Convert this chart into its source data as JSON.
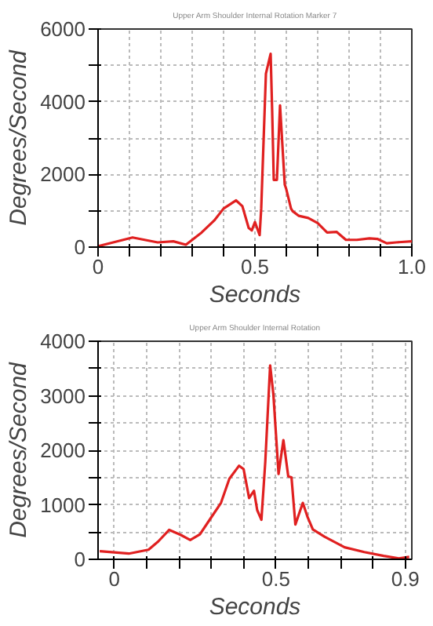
{
  "chart_data": [
    {
      "type": "line",
      "title": "Upper Arm Shoulder Internal Rotation Marker 7",
      "xlabel": "Seconds",
      "ylabel": "Degrees/Second",
      "xlim": [
        0,
        1.0
      ],
      "ylim": [
        0,
        6000
      ],
      "xticks": [
        0,
        {
          "value": 0.1,
          "label": null
        },
        {
          "value": 0.2,
          "label": null
        },
        {
          "value": 0.3,
          "label": null
        },
        {
          "value": 0.4,
          "label": null
        },
        0.5,
        {
          "value": 0.6,
          "label": null
        },
        {
          "value": 0.7,
          "label": null
        },
        {
          "value": 0.8,
          "label": null
        },
        {
          "value": 0.9,
          "label": null
        },
        {
          "value": 1.0,
          "label": "1.0"
        }
      ],
      "yticks": [
        0,
        {
          "value": 1000,
          "label": null
        },
        2000,
        {
          "value": 3000,
          "label": null
        },
        4000,
        {
          "value": 5000,
          "label": null
        },
        6000
      ],
      "grid": true,
      "line_style": "solid",
      "series": [
        {
          "color": "#e02020",
          "x": [
            0,
            0.11,
            0.19,
            0.24,
            0.28,
            0.33,
            0.37,
            0.4,
            0.44,
            0.46,
            0.48,
            0.49,
            0.5,
            0.515,
            0.52,
            0.535,
            0.55,
            0.555,
            0.56,
            0.57,
            0.58,
            0.595,
            0.6,
            0.615,
            0.62,
            0.64,
            0.67,
            0.7,
            0.73,
            0.76,
            0.79,
            0.825,
            0.865,
            0.89,
            0.92,
            0.95,
            1.0
          ],
          "values": [
            25,
            265,
            130,
            160,
            65,
            400,
            730,
            1060,
            1285,
            1125,
            530,
            460,
            690,
            330,
            1060,
            4770,
            5320,
            3710,
            1850,
            1850,
            3900,
            1720,
            1590,
            1060,
            990,
            860,
            800,
            660,
            400,
            420,
            200,
            200,
            240,
            225,
            105,
            130,
            160
          ]
        }
      ]
    },
    {
      "type": "line",
      "title": "Upper Arm Shoulder Internal Rotation",
      "xlabel": "Seconds",
      "ylabel": "Degrees/Second",
      "xlim": [
        -0.05,
        0.92
      ],
      "ylim": [
        0,
        4000
      ],
      "xticks": [
        0,
        {
          "value": 0.1,
          "label": null
        },
        {
          "value": 0.2,
          "label": null
        },
        {
          "value": 0.3,
          "label": null
        },
        {
          "value": 0.4,
          "label": null
        },
        0.5,
        {
          "value": 0.6,
          "label": null
        },
        {
          "value": 0.7,
          "label": null
        },
        {
          "value": 0.8,
          "label": null
        },
        0.9
      ],
      "yticks": [
        0,
        {
          "value": 500,
          "label": null
        },
        1000,
        {
          "value": 1500,
          "label": null
        },
        2000,
        {
          "value": 2500,
          "label": null
        },
        3000,
        {
          "value": 3500,
          "label": null
        },
        4000
      ],
      "grid": true,
      "line_style": "solid",
      "series": [
        {
          "color": "#e02020",
          "x": [
            -0.045,
            0.045,
            0.106,
            0.136,
            0.17,
            0.205,
            0.235,
            0.265,
            0.3,
            0.33,
            0.356,
            0.386,
            0.4,
            0.417,
            0.432,
            0.442,
            0.455,
            0.467,
            0.482,
            0.492,
            0.508,
            0.523,
            0.538,
            0.548,
            0.56,
            0.583,
            0.598,
            0.614,
            0.65,
            0.712,
            0.773,
            0.833,
            0.88,
            0.912
          ],
          "values": [
            150,
            105,
            177,
            327,
            540,
            450,
            354,
            460,
            770,
            1035,
            1478,
            1717,
            1655,
            1124,
            1257,
            903,
            726,
            1788,
            3557,
            3027,
            1566,
            2186,
            1522,
            1504,
            637,
            1035,
            770,
            549,
            416,
            221,
            133,
            62,
            18,
            44
          ]
        }
      ]
    }
  ]
}
